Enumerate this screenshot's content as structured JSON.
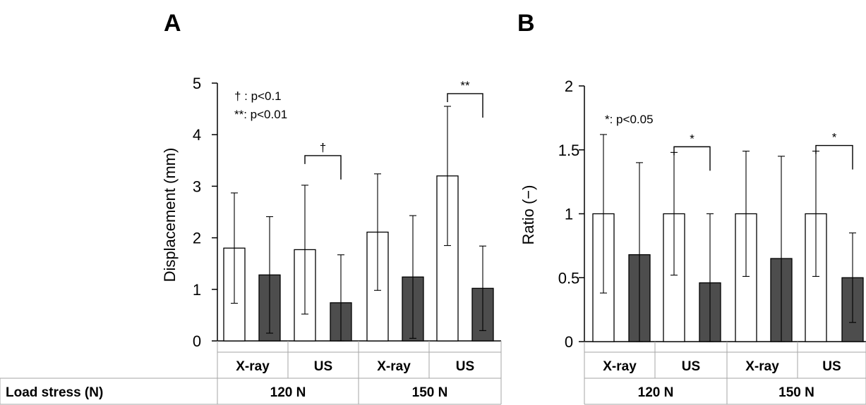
{
  "chart_data": [
    {
      "panel": "A",
      "type": "bar",
      "ylabel": "Displacement (mm)",
      "ylim": [
        0,
        5
      ],
      "yticks": [
        "0",
        "1",
        "2",
        "3",
        "4",
        "5"
      ],
      "categories": [
        "X-ray",
        "X-ray",
        "US",
        "US",
        "X-ray",
        "X-ray",
        "US",
        "US"
      ],
      "bar_fill": [
        "open",
        "filled",
        "open",
        "filled",
        "open",
        "filled",
        "open",
        "filled"
      ],
      "values": [
        1.8,
        1.28,
        1.77,
        0.74,
        2.11,
        1.24,
        3.2,
        1.02
      ],
      "errors": [
        1.07,
        1.13,
        1.25,
        0.93,
        1.13,
        1.19,
        1.35,
        0.82
      ],
      "legend_text": [
        "† : p<0.1",
        "**: p<0.01"
      ],
      "significance": [
        {
          "bars": [
            2,
            3
          ],
          "label": "†"
        },
        {
          "bars": [
            6,
            7
          ],
          "label": "**"
        }
      ],
      "table": {
        "row_label": "Load stress (N)",
        "methods": [
          "X-ray",
          "US",
          "X-ray",
          "US"
        ],
        "loads": [
          "120 N",
          "150 N"
        ]
      }
    },
    {
      "panel": "B",
      "type": "bar",
      "ylabel": "Ratio (−)",
      "ylim": [
        0,
        2
      ],
      "yticks": [
        "0",
        "0.5",
        "1",
        "1.5",
        "2"
      ],
      "categories": [
        "X-ray",
        "X-ray",
        "US",
        "US",
        "X-ray",
        "X-ray",
        "US",
        "US"
      ],
      "bar_fill": [
        "open",
        "filled",
        "open",
        "filled",
        "open",
        "filled",
        "open",
        "filled"
      ],
      "values": [
        1.0,
        0.68,
        1.0,
        0.46,
        1.0,
        0.65,
        1.0,
        0.5
      ],
      "errors": [
        0.62,
        0.72,
        0.48,
        0.54,
        0.49,
        0.8,
        0.49,
        0.35
      ],
      "legend_text": [
        "*: p<0.05"
      ],
      "significance": [
        {
          "bars": [
            2,
            3
          ],
          "label": "*"
        },
        {
          "bars": [
            6,
            7
          ],
          "label": "*"
        }
      ],
      "table": {
        "methods": [
          "X-ray",
          "US",
          "X-ray",
          "US"
        ],
        "loads": [
          "120 N",
          "150 N"
        ]
      }
    }
  ],
  "colors": {
    "open_bar": "#ffffff",
    "filled_bar": "#4d4d4d",
    "stroke": "#000000",
    "grid_line": "#a6a6a6"
  }
}
